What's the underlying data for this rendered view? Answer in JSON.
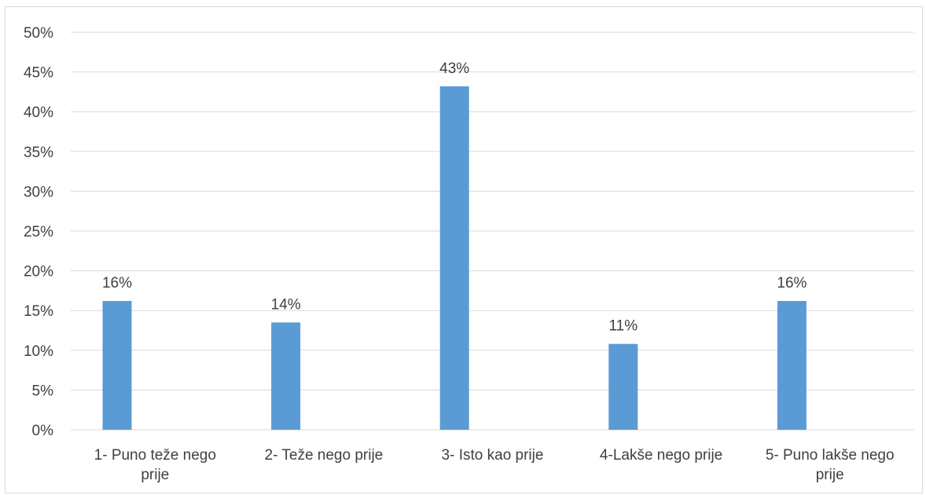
{
  "chart_data": {
    "type": "bar",
    "categories": [
      [
        "1- Puno teže nego",
        "prije"
      ],
      [
        "2- Teže nego prije"
      ],
      [
        "3- Isto kao prije"
      ],
      [
        "4-Lakše nego prije"
      ],
      [
        "5- Puno lakše nego",
        "prije"
      ]
    ],
    "values": [
      16.2,
      13.5,
      43.2,
      10.8,
      16.2
    ],
    "data_labels": [
      "16%",
      "14%",
      "43%",
      "11%",
      "16%"
    ],
    "ytick_labels": [
      "0%",
      "5%",
      "10%",
      "15%",
      "20%",
      "25%",
      "30%",
      "35%",
      "40%",
      "45%",
      "50%"
    ],
    "ylim": [
      0,
      50
    ],
    "ystep": 5,
    "grid": true,
    "bar_color": "#5b9bd5",
    "grid_color": "#d9d9d9",
    "title": "",
    "xlabel": "",
    "ylabel": ""
  }
}
